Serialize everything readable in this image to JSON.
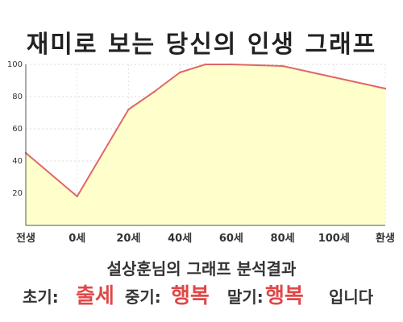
{
  "title": "재미로 보는 당신의 인생 그래프",
  "subtitle": "설상훈님의 그래프 분석결과",
  "result": {
    "early_label": "초기:",
    "early_value": "출세",
    "middle_label": "중기:",
    "middle_value": "행복",
    "late_label": "말기:",
    "late_value": "행복",
    "ending": "입니다"
  },
  "colors": {
    "fill": "#ffffcc",
    "line": "#e06666",
    "highlight": "#e04848"
  },
  "chart_data": {
    "type": "area",
    "x": [
      0,
      1,
      2,
      2.5,
      3,
      3.5,
      4,
      5,
      6,
      7
    ],
    "y": [
      45,
      18,
      72,
      83,
      95,
      100,
      100,
      99,
      92,
      85
    ],
    "xticks": [
      0,
      1,
      2,
      3,
      4,
      5,
      6,
      7
    ],
    "xtick_labels": [
      "전생",
      "0세",
      "20세",
      "40세",
      "60세",
      "80세",
      "100세",
      "환생"
    ],
    "yticks": [
      20,
      40,
      60,
      80,
      100
    ],
    "ylim": [
      0,
      100
    ],
    "xlim": [
      0,
      7
    ],
    "grid": true
  }
}
